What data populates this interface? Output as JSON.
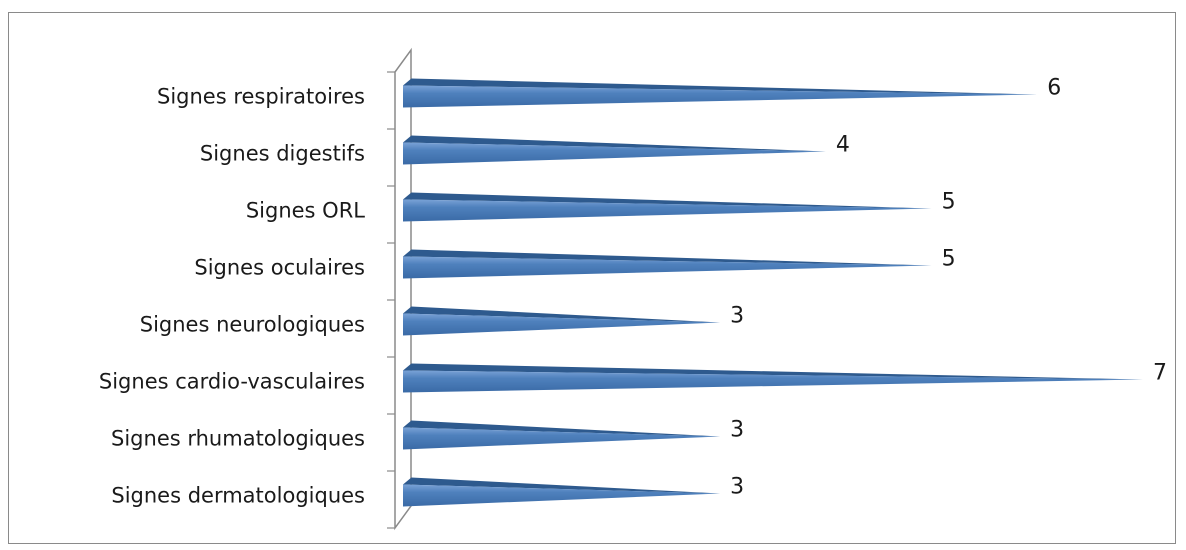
{
  "chart_data": {
    "type": "bar",
    "orientation": "horizontal",
    "style": "3d-cone",
    "categories": [
      "Signes respiratoires",
      "Signes digestifs",
      "Signes ORL",
      "Signes oculaires",
      "Signes neurologiques",
      "Signes cardio-vasculaires",
      "Signes rhumatologiques",
      "Signes dermatologiques"
    ],
    "values": [
      6,
      4,
      5,
      5,
      3,
      7,
      3,
      3
    ],
    "xlim": [
      0,
      7
    ],
    "grid": false,
    "legend": "none",
    "colors": {
      "bar": "#4f81bd",
      "bar_dark": "#2e5a8e",
      "bar_light": "#7aa2d6",
      "axis": "#8a8a8a",
      "frame": "#8a8a8a"
    }
  }
}
